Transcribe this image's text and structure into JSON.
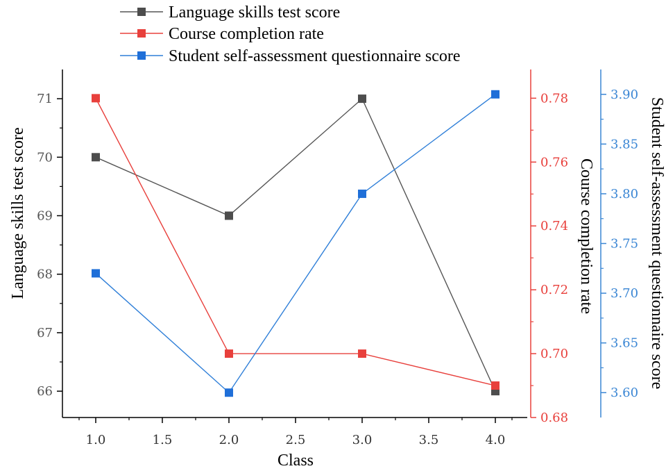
{
  "chart_data": {
    "type": "line",
    "xlabel": "Class",
    "x": [
      1.0,
      2.0,
      3.0,
      4.0
    ],
    "xlim": [
      0.75,
      4.25
    ],
    "xticks": [
      "1.0",
      "1.5",
      "2.0",
      "2.5",
      "3.0",
      "3.5",
      "4.0"
    ],
    "xtick_values": [
      1.0,
      1.5,
      2.0,
      2.5,
      3.0,
      3.5,
      4.0
    ],
    "legend_position": "top-left",
    "grid": false,
    "axes": [
      {
        "id": "left",
        "label": "Language skills test score",
        "color": "#333333",
        "ylim": [
          65.55,
          71.5
        ],
        "ticks": [
          "66",
          "67",
          "68",
          "69",
          "70",
          "71"
        ],
        "tick_values": [
          66,
          67,
          68,
          69,
          70,
          71
        ]
      },
      {
        "id": "right1",
        "label": "Course completion rate",
        "color": "#e8403c",
        "ylim": [
          0.68,
          0.789
        ],
        "ticks": [
          "0.68",
          "0.70",
          "0.72",
          "0.74",
          "0.76",
          "0.78"
        ],
        "tick_values": [
          0.68,
          0.7,
          0.72,
          0.74,
          0.76,
          0.78
        ]
      },
      {
        "id": "right2",
        "label": "Student self-assessment questionnaire score",
        "color": "#3a86d4",
        "ylim": [
          3.575,
          3.925
        ],
        "ticks": [
          "3.60",
          "3.65",
          "3.70",
          "3.75",
          "3.80",
          "3.85",
          "3.90"
        ],
        "tick_values": [
          3.6,
          3.65,
          3.7,
          3.75,
          3.8,
          3.85,
          3.9
        ]
      }
    ],
    "series": [
      {
        "name": "Language skills test score",
        "axis": "left",
        "color": "#4d4d4d",
        "line_color": "#555555",
        "values": [
          70,
          69,
          71,
          66
        ]
      },
      {
        "name": "Course completion rate",
        "axis": "right1",
        "color": "#e8403c",
        "line_color": "#e8403c",
        "values": [
          0.78,
          0.7,
          0.7,
          0.69
        ]
      },
      {
        "name": "Student self-assessment questionnaire score",
        "axis": "right2",
        "color": "#1f6fd8",
        "line_color": "#2f7fd8",
        "values": [
          3.72,
          3.6,
          3.8,
          3.9
        ]
      }
    ]
  }
}
